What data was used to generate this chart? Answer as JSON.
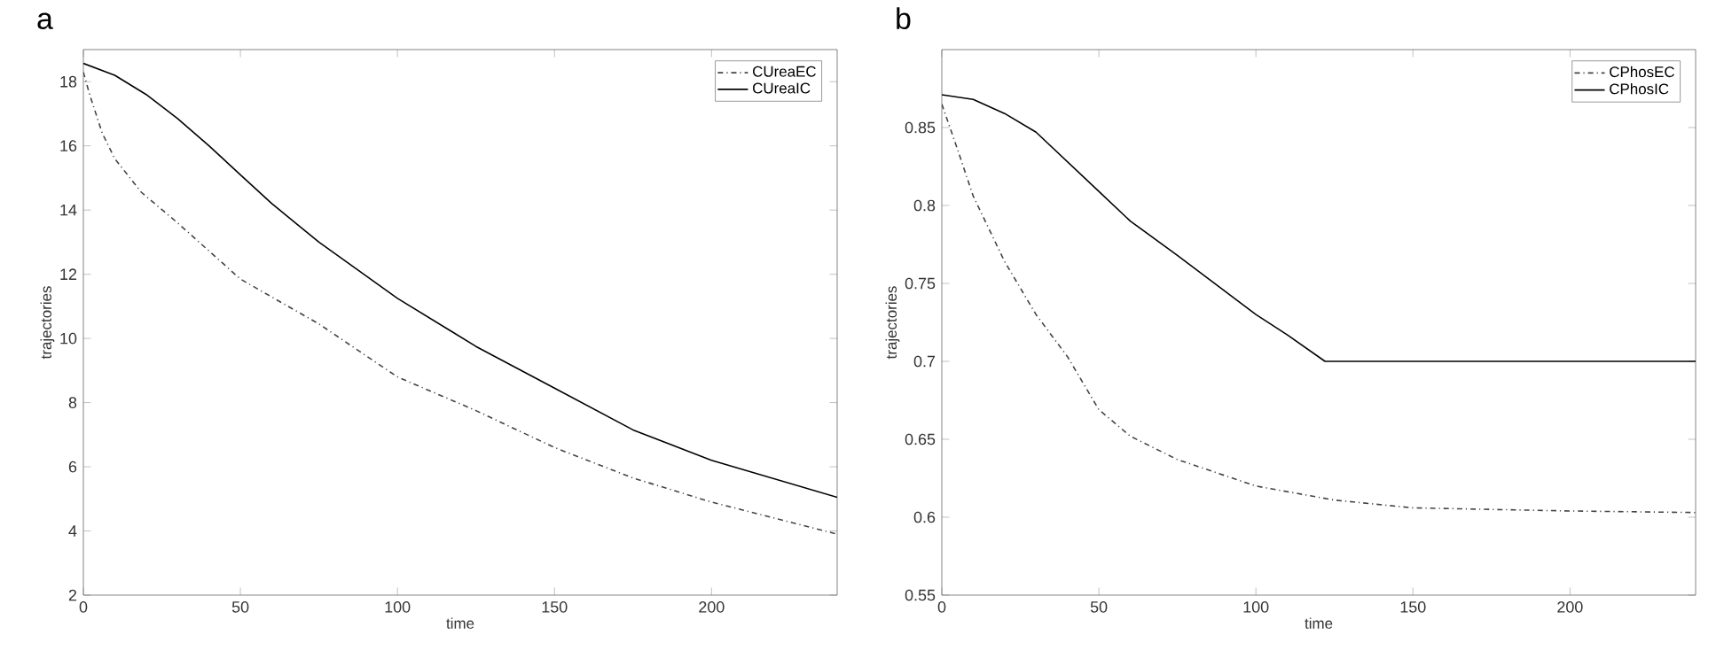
{
  "chart_data": [
    {
      "type": "line",
      "title": "a",
      "xlabel": "time",
      "ylabel": "trajectories",
      "xlim": [
        0,
        240
      ],
      "ylim": [
        2,
        19
      ],
      "xticks": [
        0,
        50,
        100,
        150,
        200
      ],
      "yticks": [
        2,
        4,
        6,
        8,
        10,
        12,
        14,
        16,
        18
      ],
      "legend": "top right",
      "grid": false,
      "series": [
        {
          "name": "CUreaEC",
          "color": "#444444",
          "line_style": "dashed",
          "x": [
            0,
            2,
            6,
            10,
            18.5,
            30,
            50,
            75,
            100,
            125,
            150,
            175,
            200,
            240
          ],
          "values": [
            18.3,
            17.6,
            16.4,
            15.6,
            14.55,
            13.6,
            11.85,
            10.45,
            8.8,
            7.75,
            6.6,
            5.65,
            4.9,
            3.9
          ]
        },
        {
          "name": "CUreaIC",
          "color": "#000000",
          "line_style": "solid",
          "x": [
            0,
            10,
            20,
            30,
            40,
            50,
            60,
            75,
            100,
            125,
            150,
            175,
            200,
            240
          ],
          "values": [
            18.57,
            18.2,
            17.6,
            16.85,
            16.0,
            15.1,
            14.2,
            13.0,
            11.25,
            9.75,
            8.45,
            7.15,
            6.2,
            5.05
          ]
        }
      ]
    },
    {
      "type": "line",
      "title": "b",
      "xlabel": "time",
      "ylabel": "trajectories",
      "xlim": [
        0,
        240
      ],
      "ylim": [
        0.55,
        0.9
      ],
      "xticks": [
        0,
        50,
        100,
        150,
        200
      ],
      "yticks": [
        0.55,
        0.6,
        0.65,
        0.7,
        0.75,
        0.8,
        0.85
      ],
      "legend": "top right",
      "grid": false,
      "series": [
        {
          "name": "CPhosEC",
          "color": "#444444",
          "line_style": "dashed",
          "x": [
            0,
            5,
            10,
            20,
            30,
            40,
            50,
            60,
            75,
            100,
            125,
            150,
            200,
            240
          ],
          "values": [
            0.865,
            0.836,
            0.806,
            0.764,
            0.73,
            0.703,
            0.669,
            0.652,
            0.637,
            0.62,
            0.611,
            0.606,
            0.604,
            0.603
          ]
        },
        {
          "name": "CPhosIC",
          "color": "#000000",
          "line_style": "solid",
          "x": [
            0,
            10,
            20,
            30,
            40,
            50,
            60,
            75,
            100,
            110,
            122,
            240
          ],
          "values": [
            0.871,
            0.868,
            0.859,
            0.847,
            0.828,
            0.809,
            0.79,
            0.768,
            0.73,
            0.717,
            0.7,
            0.7
          ]
        }
      ]
    }
  ]
}
